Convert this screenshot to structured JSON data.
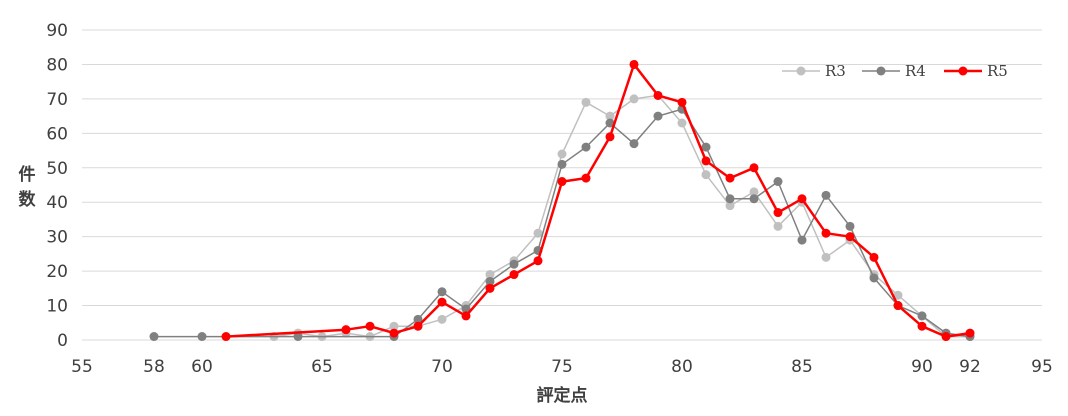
{
  "chart_data": {
    "type": "line",
    "title": "",
    "xlabel": "評定点",
    "ylabel": "件数",
    "xlim": [
      55,
      95
    ],
    "ylim": [
      0,
      90
    ],
    "x_ticks": [
      55,
      58,
      60,
      65,
      70,
      75,
      80,
      85,
      90,
      92,
      95
    ],
    "y_ticks": [
      0,
      10,
      20,
      30,
      40,
      50,
      60,
      70,
      80,
      90
    ],
    "grid": "horizontal",
    "legend": "top-right",
    "series": [
      {
        "name": "R3",
        "color": "#c0c0c0",
        "points": [
          [
            63,
            1
          ],
          [
            64,
            2
          ],
          [
            65,
            1
          ],
          [
            66,
            2
          ],
          [
            67,
            1
          ],
          [
            68,
            4
          ],
          [
            69,
            4
          ],
          [
            70,
            6
          ],
          [
            71,
            10
          ],
          [
            72,
            19
          ],
          [
            73,
            23
          ],
          [
            74,
            31
          ],
          [
            75,
            54
          ],
          [
            76,
            69
          ],
          [
            77,
            65
          ],
          [
            78,
            70
          ],
          [
            79,
            71
          ],
          [
            80,
            63
          ],
          [
            81,
            48
          ],
          [
            82,
            39
          ],
          [
            83,
            43
          ],
          [
            84,
            33
          ],
          [
            85,
            40
          ],
          [
            86,
            24
          ],
          [
            87,
            29
          ],
          [
            88,
            19
          ],
          [
            89,
            13
          ],
          [
            90,
            7
          ],
          [
            91,
            1
          ],
          [
            92,
            1
          ]
        ]
      },
      {
        "name": "R4",
        "color": "#808080",
        "points": [
          [
            58,
            1
          ],
          [
            60,
            1
          ],
          [
            64,
            1
          ],
          [
            68,
            1
          ],
          [
            69,
            6
          ],
          [
            70,
            14
          ],
          [
            71,
            9
          ],
          [
            72,
            17
          ],
          [
            73,
            22
          ],
          [
            74,
            26
          ],
          [
            75,
            51
          ],
          [
            76,
            56
          ],
          [
            77,
            63
          ],
          [
            78,
            57
          ],
          [
            79,
            65
          ],
          [
            80,
            67
          ],
          [
            81,
            56
          ],
          [
            82,
            41
          ],
          [
            83,
            41
          ],
          [
            84,
            46
          ],
          [
            85,
            29
          ],
          [
            86,
            42
          ],
          [
            87,
            33
          ],
          [
            88,
            18
          ],
          [
            89,
            10
          ],
          [
            90,
            7
          ],
          [
            91,
            2
          ],
          [
            92,
            1
          ]
        ]
      },
      {
        "name": "R5",
        "color": "#ff0000",
        "points": [
          [
            61,
            1
          ],
          [
            66,
            3
          ],
          [
            67,
            4
          ],
          [
            68,
            2
          ],
          [
            69,
            4
          ],
          [
            70,
            11
          ],
          [
            71,
            7
          ],
          [
            72,
            15
          ],
          [
            73,
            19
          ],
          [
            74,
            23
          ],
          [
            75,
            46
          ],
          [
            76,
            47
          ],
          [
            77,
            59
          ],
          [
            78,
            80
          ],
          [
            79,
            71
          ],
          [
            80,
            69
          ],
          [
            81,
            52
          ],
          [
            82,
            47
          ],
          [
            83,
            50
          ],
          [
            84,
            37
          ],
          [
            85,
            41
          ],
          [
            86,
            31
          ],
          [
            87,
            30
          ],
          [
            88,
            24
          ],
          [
            89,
            10
          ],
          [
            90,
            4
          ],
          [
            91,
            1
          ],
          [
            92,
            2
          ]
        ]
      }
    ]
  }
}
